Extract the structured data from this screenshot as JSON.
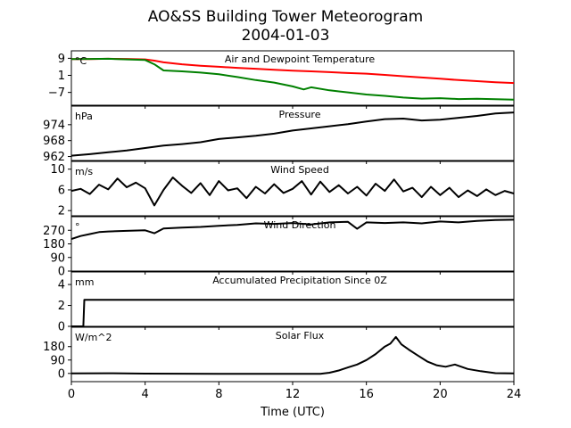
{
  "figure": {
    "title": "AO&SS Building Tower Meteorogram",
    "subtitle": "2004-01-03",
    "xlabel": "Time (UTC)",
    "x_ticks": [
      "0",
      "4",
      "8",
      "12",
      "16",
      "20",
      "24"
    ]
  },
  "chart_data": [
    {
      "type": "line",
      "title": "Air and Dewpoint Temperature",
      "unit": "°C",
      "ylim": [
        -13,
        12.5
      ],
      "y_ticks": [
        9,
        1,
        -7
      ],
      "y_tick_labels": [
        "9",
        "1",
        "−7"
      ],
      "series": [
        {
          "color": "#ff0000",
          "x": [
            0,
            1,
            2,
            3,
            4,
            4.5,
            5,
            6,
            7,
            8,
            9,
            10,
            11,
            12,
            13,
            14,
            15,
            16,
            17,
            18,
            19,
            20,
            21,
            22,
            23,
            24
          ],
          "values": [
            8.6,
            8.6,
            8.8,
            8.7,
            8.5,
            7.9,
            7.1,
            6.2,
            5.5,
            5.0,
            4.5,
            4.1,
            3.6,
            3.2,
            2.9,
            2.5,
            2.1,
            1.8,
            1.2,
            0.6,
            0.0,
            -0.6,
            -1.2,
            -1.7,
            -2.2,
            -2.6
          ]
        },
        {
          "color": "#008000",
          "x": [
            0,
            1,
            2,
            3,
            4,
            4.5,
            5,
            6,
            7,
            8,
            9,
            10,
            11,
            12,
            12.6,
            13,
            14,
            15,
            16,
            17,
            18,
            19,
            20,
            21,
            22,
            23,
            24
          ],
          "values": [
            8.6,
            8.7,
            8.8,
            8.5,
            8.2,
            6.2,
            3.3,
            2.9,
            2.3,
            1.5,
            0.2,
            -1.2,
            -2.4,
            -4.2,
            -5.6,
            -4.6,
            -6.0,
            -7.0,
            -8.0,
            -8.6,
            -9.4,
            -9.9,
            -9.7,
            -10.1,
            -10.0,
            -10.2,
            -10.4
          ]
        }
      ]
    },
    {
      "type": "line",
      "title": "Pressure",
      "unit": "hPa",
      "ylim": [
        960.5,
        981
      ],
      "y_ticks": [
        962,
        968,
        974
      ],
      "y_tick_labels": [
        "962",
        "968",
        "974"
      ],
      "series": [
        {
          "color": "#000000",
          "x": [
            0,
            1,
            2,
            3,
            4,
            5,
            6,
            7,
            8,
            9,
            10,
            11,
            12,
            13,
            14,
            15,
            16,
            17,
            18,
            19,
            20,
            21,
            22,
            23,
            24
          ],
          "values": [
            962.3,
            962.9,
            963.6,
            964.3,
            965.2,
            966.1,
            966.7,
            967.4,
            968.6,
            969.2,
            969.8,
            970.6,
            971.8,
            972.6,
            973.4,
            974.2,
            975.2,
            976.1,
            976.3,
            975.6,
            975.9,
            976.6,
            977.3,
            978.2,
            978.6
          ]
        }
      ]
    },
    {
      "type": "line",
      "title": "Wind Speed",
      "unit": "m/s",
      "ylim": [
        1,
        11.5
      ],
      "y_ticks": [
        2,
        6,
        10
      ],
      "y_tick_labels": [
        "2",
        "6",
        "10"
      ],
      "series": [
        {
          "color": "#000000",
          "x": [
            0,
            0.5,
            1,
            1.5,
            2,
            2.5,
            3,
            3.5,
            4,
            4.5,
            5,
            5.5,
            6,
            6.5,
            7,
            7.5,
            8,
            8.5,
            9,
            9.5,
            10,
            10.5,
            11,
            11.5,
            12,
            12.5,
            13,
            13.5,
            14,
            14.5,
            15,
            15.5,
            16,
            16.5,
            17,
            17.5,
            18,
            18.5,
            19,
            19.5,
            20,
            20.5,
            21,
            21.5,
            22,
            22.5,
            23,
            23.5,
            24
          ],
          "values": [
            5.8,
            6.2,
            5.2,
            7.0,
            6.1,
            8.2,
            6.5,
            7.4,
            6.3,
            3.0,
            6.0,
            8.4,
            6.8,
            5.4,
            7.3,
            5.0,
            7.7,
            5.9,
            6.3,
            4.4,
            6.6,
            5.3,
            7.1,
            5.4,
            6.2,
            7.7,
            5.1,
            7.6,
            5.6,
            6.9,
            5.3,
            6.6,
            4.9,
            7.2,
            5.8,
            8.0,
            5.7,
            6.4,
            4.6,
            6.6,
            5.0,
            6.4,
            4.6,
            5.9,
            4.8,
            6.1,
            5.0,
            5.8,
            5.3
          ]
        }
      ]
    },
    {
      "type": "line",
      "title": "Wind Direction",
      "unit": "°",
      "ylim": [
        0,
        360
      ],
      "y_ticks": [
        0,
        90,
        180,
        270
      ],
      "y_tick_labels": [
        "0",
        "90",
        "180",
        "270"
      ],
      "series": [
        {
          "color": "#000000",
          "x": [
            0,
            0.5,
            1,
            1.5,
            2,
            3,
            4,
            4.5,
            5,
            6,
            7,
            8,
            9,
            10,
            11,
            12,
            13,
            14,
            15,
            15.5,
            16,
            17,
            18,
            19,
            20,
            21,
            22,
            23,
            24
          ],
          "values": [
            212,
            232,
            245,
            258,
            262,
            266,
            270,
            250,
            282,
            288,
            292,
            300,
            306,
            316,
            312,
            318,
            308,
            322,
            326,
            280,
            322,
            318,
            322,
            316,
            328,
            322,
            332,
            338,
            340
          ]
        }
      ]
    },
    {
      "type": "line",
      "title": "Accumulated Precipitation Since 0Z",
      "unit": "mm",
      "ylim": [
        0,
        5.2
      ],
      "y_ticks": [
        0,
        2,
        4
      ],
      "y_tick_labels": [
        "0",
        "2",
        "4"
      ],
      "series": [
        {
          "color": "#000000",
          "x": [
            0,
            0.65,
            0.7,
            24
          ],
          "values": [
            0,
            0,
            2.54,
            2.54
          ]
        }
      ]
    },
    {
      "type": "line",
      "title": "Solar Flux",
      "unit": "W/m^2",
      "ylim": [
        -55,
        310
      ],
      "y_ticks": [
        0,
        90,
        180
      ],
      "y_tick_labels": [
        "0",
        "90",
        "180"
      ],
      "series": [
        {
          "color": "#000000",
          "x": [
            0,
            2,
            4,
            6,
            8,
            10,
            12,
            13.5,
            14,
            14.5,
            15,
            15.5,
            16,
            16.5,
            17,
            17.3,
            17.6,
            17.9,
            18.3,
            18.8,
            19.3,
            19.8,
            20.3,
            20.8,
            21.5,
            22.2,
            23,
            24
          ],
          "values": [
            0,
            1,
            -1,
            -2,
            -3,
            -3,
            -3,
            -3,
            5,
            20,
            40,
            60,
            90,
            130,
            180,
            200,
            245,
            195,
            160,
            120,
            80,
            55,
            45,
            60,
            30,
            15,
            2,
            0
          ]
        }
      ]
    }
  ]
}
